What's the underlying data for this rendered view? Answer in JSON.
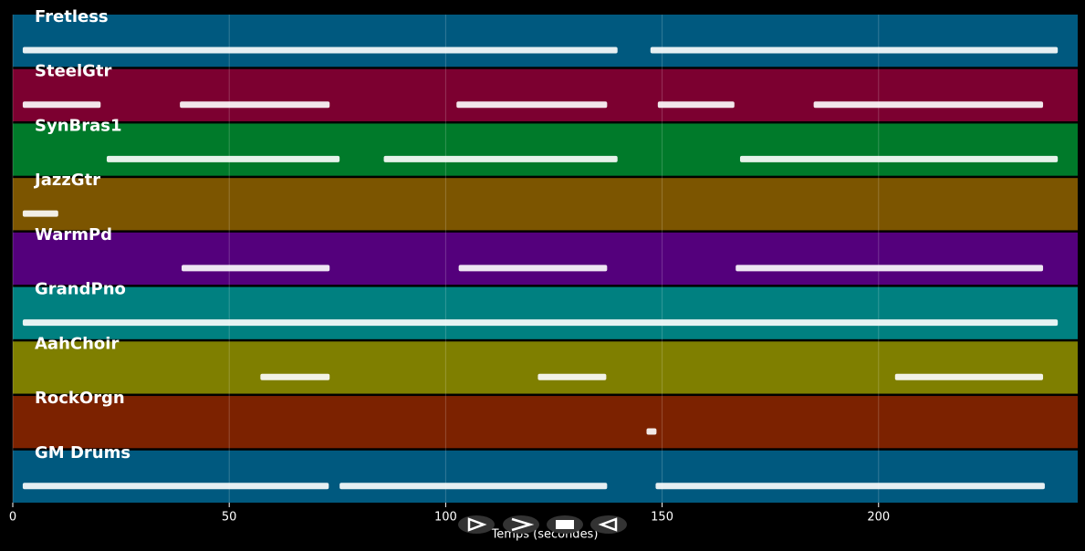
{
  "chart_data": {
    "type": "timeline",
    "x_label": "Temps (secondes)",
    "xlim": [
      0,
      246
    ],
    "xticks": [
      0,
      50,
      100,
      150,
      200
    ],
    "grid": true,
    "series": [
      {
        "name": "Fretless",
        "color": "#00597f",
        "segments": [
          [
            2.3,
            139.7
          ],
          [
            147.3,
            241.4
          ]
        ]
      },
      {
        "name": "SteelGtr",
        "color": "#7c0030",
        "segments": [
          [
            2.3,
            20.3
          ],
          [
            38.6,
            73.2
          ],
          [
            102.5,
            137.3
          ],
          [
            149,
            166.7
          ],
          [
            185,
            238
          ]
        ]
      },
      {
        "name": "SynBras1",
        "color": "#007a2a",
        "segments": [
          [
            21.7,
            75.5
          ],
          [
            85.7,
            139.7
          ],
          [
            168,
            241.4
          ]
        ]
      },
      {
        "name": "JazzGtr",
        "color": "#7c5500",
        "segments": [
          [
            2.3,
            10.5
          ]
        ]
      },
      {
        "name": "WarmPd",
        "color": "#54007c",
        "segments": [
          [
            39,
            73.2
          ],
          [
            103,
            137.3
          ],
          [
            167,
            238
          ]
        ]
      },
      {
        "name": "GrandPno",
        "color": "#008080",
        "segments": [
          [
            2.3,
            241.4
          ]
        ]
      },
      {
        "name": "AahChoir",
        "color": "#7f7f00",
        "segments": [
          [
            57.2,
            73.2
          ],
          [
            121.3,
            137.1
          ],
          [
            203.8,
            238
          ]
        ]
      },
      {
        "name": "RockOrgn",
        "color": "#7c2200",
        "segments": [
          [
            146.4,
            148.7
          ]
        ]
      },
      {
        "name": "GM Drums",
        "color": "#00597f",
        "segments": [
          [
            2.3,
            73
          ],
          [
            75.5,
            137.3
          ],
          [
            148.5,
            238.4
          ]
        ]
      }
    ]
  }
}
